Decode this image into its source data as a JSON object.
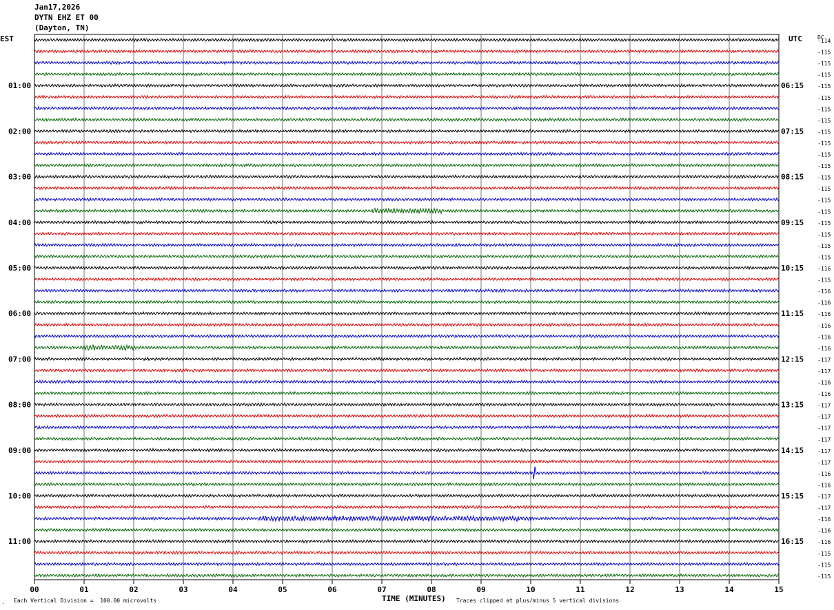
{
  "header": {
    "date": "Jan17,2026",
    "station": "DYTN EHZ ET 00",
    "location": "(Dayton, TN)"
  },
  "left_tz": "EST",
  "right_tz": "UTC",
  "dc_label": "DC",
  "footer": {
    "scale": "Each Vertical Division =  100.00 microvolts",
    "xlabel": "TIME (MINUTES)",
    "clip_note": "Traces clipped at plus/minus 5 vertical divisions",
    "corner_mark": "."
  },
  "chart_data": {
    "type": "line",
    "title": "",
    "xlabel": "TIME (MINUTES)",
    "ylabel": "",
    "xlim": [
      0,
      15
    ],
    "x_ticks": [
      "00",
      "01",
      "02",
      "03",
      "04",
      "05",
      "06",
      "07",
      "08",
      "09",
      "10",
      "11",
      "12",
      "13",
      "14",
      "15"
    ],
    "grid": true,
    "trace_colors": [
      "#000000",
      "#dd0000",
      "#0000cc",
      "#006400"
    ],
    "hour_labels_left": [
      "01:00",
      "02:00",
      "03:00",
      "04:00",
      "05:00",
      "06:00",
      "07:00",
      "08:00",
      "09:00",
      "10:00",
      "11:00"
    ],
    "hour_labels_right": [
      "06:15",
      "07:15",
      "08:15",
      "09:15",
      "10:15",
      "11:15",
      "12:15",
      "13:15",
      "14:15",
      "15:15",
      "16:15"
    ],
    "dc_offsets": [
      "-114",
      "-115",
      "-115",
      "-115",
      "-115",
      "-115",
      "-115",
      "-115",
      "-115",
      "-115",
      "-115",
      "-115",
      "-115",
      "-115",
      "-115",
      "-115",
      "-115",
      "-115",
      "-115",
      "-115",
      "-116",
      "-115",
      "-116",
      "-116",
      "-116",
      "-116",
      "-116",
      "-116",
      "-117",
      "-117",
      "-116",
      "-116",
      "-117",
      "-117",
      "-117",
      "-117",
      "-117",
      "-117",
      "-116",
      "-116",
      "-117",
      "-117",
      "-116",
      "-116",
      "-116",
      "-115",
      "-115",
      "-115"
    ],
    "events": [
      {
        "row": 15,
        "x_min_start": 6.8,
        "x_min_end": 8.2,
        "note": "emergent burst"
      },
      {
        "row": 27,
        "x_min_start": 1.0,
        "x_min_end": 2.0,
        "note": "burst"
      },
      {
        "row": 38,
        "x_min_start": 10.05,
        "x_min_end": 10.1,
        "note": "spike"
      },
      {
        "row": 42,
        "x_min_start": 4.5,
        "x_min_end": 10.0,
        "note": "elevated noise"
      }
    ]
  }
}
